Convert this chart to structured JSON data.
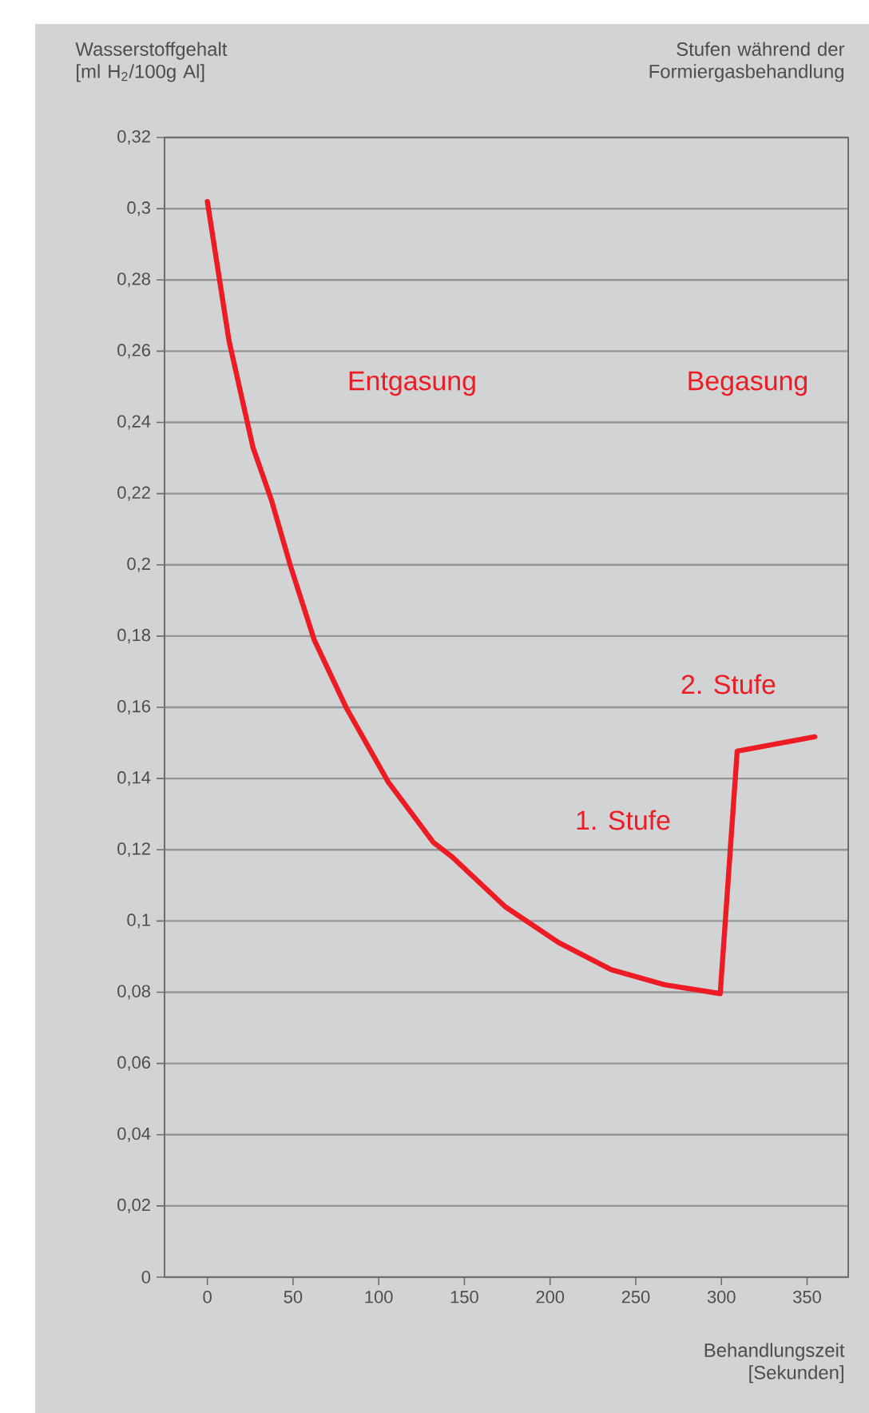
{
  "chart_data": {
    "type": "line",
    "ylabel": "Wasserstoffgehalt\n[ml H$_{2}$/100g Al]",
    "xlabel": "Behandlungszeit\n[Sekunden]",
    "x": [
      0,
      12.6,
      26.6,
      37.5,
      48.3,
      62.3,
      80.9,
      105.6,
      132,
      142.8,
      173.8,
      204.8,
      235.8,
      266.8,
      299.3,
      309.2,
      354.5
    ],
    "series": [
      {
        "color": "#ed1c24",
        "values": [
          0.302,
          0.263,
          0.233,
          0.218,
          0.2,
          0.179,
          0.16,
          0.139,
          0.122,
          0.118,
          0.104,
          0.094,
          0.0863,
          0.0821,
          0.0796,
          0.1477,
          0.1517
        ]
      }
    ],
    "xlim": [
      -25,
      374
    ],
    "ylim": [
      0,
      0.32
    ],
    "xticks": [
      0,
      50,
      100,
      150,
      200,
      250,
      300,
      350
    ],
    "yticks": [
      0,
      {
        "value": 0.02,
        "label": "0,02"
      },
      {
        "value": 0.04,
        "label": "0,04"
      },
      {
        "value": 0.06,
        "label": "0,06"
      },
      {
        "value": 0.08,
        "label": "0,08"
      },
      {
        "value": 0.1,
        "label": "0,1"
      },
      {
        "value": 0.12,
        "label": "0,12"
      },
      {
        "value": 0.14,
        "label": "0,14"
      },
      {
        "value": 0.16,
        "label": "0,16"
      },
      {
        "value": 0.18,
        "label": "0,18"
      },
      {
        "value": 0.2,
        "label": "0,2"
      },
      {
        "value": 0.22,
        "label": "0,22"
      },
      {
        "value": 0.24,
        "label": "0,24"
      },
      {
        "value": 0.26,
        "label": "0,26"
      },
      {
        "value": 0.28,
        "label": "0,28"
      },
      {
        "value": 0.3,
        "label": "0,3"
      },
      {
        "value": 0.32,
        "label": "0,32"
      }
    ],
    "grid": "y",
    "marker": "none",
    "line_style": "solid",
    "annotations": [
      "Stufen während der\nFormiergasbehandlung",
      "Entgasung",
      "Begasung",
      "1. Stufe",
      "2. Stufe"
    ]
  }
}
